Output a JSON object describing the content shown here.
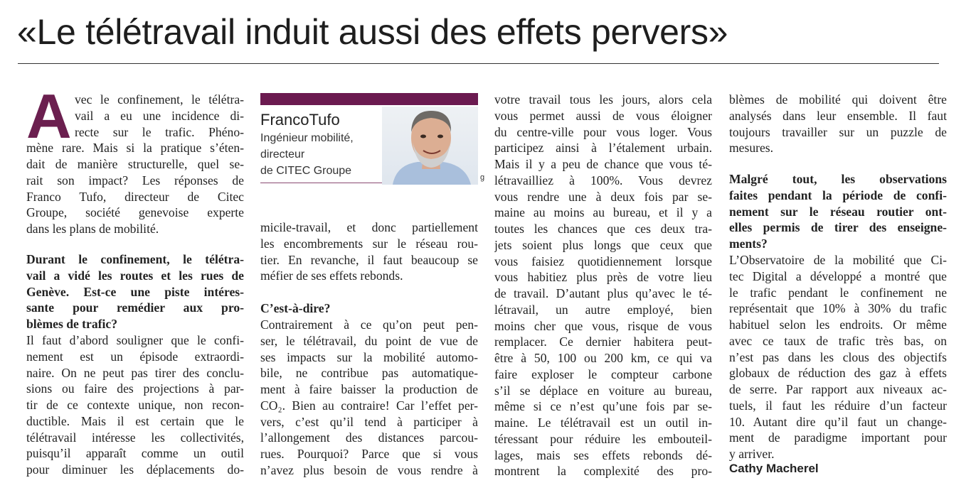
{
  "title": "«Le télétravail induit aussi des effets pervers»",
  "accent_color": "#6b1f4f",
  "intro": {
    "drop_cap": "A",
    "lines": [
      "vec le confinement, le télétra-",
      "vail a eu une incidence di-",
      "recte sur le trafic. Phéno-",
      "mène rare. Mais si la pratique s’éten-",
      "dait de manière structurelle, quel se-",
      "rait son impact? Les réponses de",
      "Franco Tufo, directeur de Citec",
      "Groupe, société genevoise experte",
      "dans les plans de mobilité."
    ]
  },
  "q1": {
    "question": [
      "Durant le confinement, le télétra-",
      "vail a vidé les routes et les rues de",
      "Genève. Est-ce une piste intéres-",
      "sante pour remédier aux pro-",
      "blèmes de trafic?"
    ],
    "answer_col1": [
      "Il faut d’abord souligner que le confi-",
      "nement est un épisode extraordi-",
      "naire. On ne peut pas tirer des conclu-",
      "sions ou faire des projections à par-",
      "tir de ce contexte unique, non recon-",
      "ductible. Mais il est certain que le",
      "télétravail intéresse les collectivités,",
      "puisqu’il apparaît comme un outil",
      "pour diminuer les déplacements do-"
    ],
    "answer_col2": [
      "micile-travail, et donc partiellement",
      "les encombrements sur le réseau rou-",
      "tier. En revanche, il faut beaucoup se",
      "méfier de ses effets rebonds."
    ]
  },
  "expert": {
    "name": "FrancoTufo",
    "role": [
      "Ingénieur mobilité,",
      "directeur",
      "de CITEC Groupe"
    ],
    "photo_credit": "g"
  },
  "q2": {
    "question": [
      "C’est-à-dire?"
    ],
    "answer_col2": [
      "Contrairement à ce qu’on peut pen-",
      "ser, le télétravail, du point de vue de",
      "ses impacts sur la mobilité automo-",
      "bile, ne contribue pas automatique-",
      "ment à faire baisser la production de",
      "CO₂. Bien au contraire! Car l’effet per-",
      "vers, c’est qu’il tend à participer à",
      "l’allongement des distances parcou-",
      "rues. Pourquoi? Parce que si vous",
      "n’avez plus besoin de vous rendre à"
    ],
    "answer_col3": [
      "votre travail tous les jours, alors cela",
      "vous permet aussi de vous éloigner",
      "du centre-ville pour vous loger. Vous",
      "participez ainsi à l’étalement urbain.",
      "Mais il y a peu de chance que vous té-",
      "létravailliez à 100%. Vous devrez",
      "vous rendre une à deux fois par se-",
      "maine au moins au bureau, et il y a",
      "toutes les chances que ces deux tra-",
      "jets soient plus longs que ceux que",
      "vous faisiez quotidiennement lorsque",
      "vous habitiez plus près de votre lieu",
      "de travail. D’autant plus qu’avec le té-",
      "létravail, un autre employé, bien",
      "moins cher que vous, risque de vous",
      "remplacer. Ce dernier habitera peut-",
      "être à 50, 100 ou 200 km, ce qui va",
      "faire exploser le compteur carbone",
      "s’il se déplace en voiture au bureau,",
      "même si ce n’est qu’une fois par se-",
      "maine. Le télétravail est un outil in-",
      "téressant pour réduire les embouteil-",
      "lages, mais ses effets rebonds dé-",
      "montrent la complexité des pro-"
    ],
    "answer_col4": [
      "blèmes de mobilité qui doivent être",
      "analysés dans leur ensemble. Il faut",
      "toujours travailler sur un puzzle de",
      "mesures."
    ]
  },
  "q3": {
    "question": [
      "Malgré tout, les observations",
      "faites pendant la période de confi-",
      "nement sur le réseau routier ont-",
      "elles permis de tirer des enseigne-",
      "ments?"
    ],
    "answer": [
      "L’Observatoire de la mobilité que Ci-",
      "tec Digital a développé a montré que",
      "le trafic pendant le confinement ne",
      "représentait que 10% à 30% du trafic",
      "habituel selon les endroits. Or même",
      "avec ce taux de trafic très bas, on",
      "n’est pas dans les clous des objectifs",
      "globaux de réduction des gaz à effets",
      "de serre. Par rapport aux niveaux ac-",
      "tuels, il faut les réduire d’un facteur",
      "10. Autant dire qu’il faut un change-",
      "ment de paradigme important pour",
      "y arriver."
    ]
  },
  "byline": "Cathy Macherel"
}
